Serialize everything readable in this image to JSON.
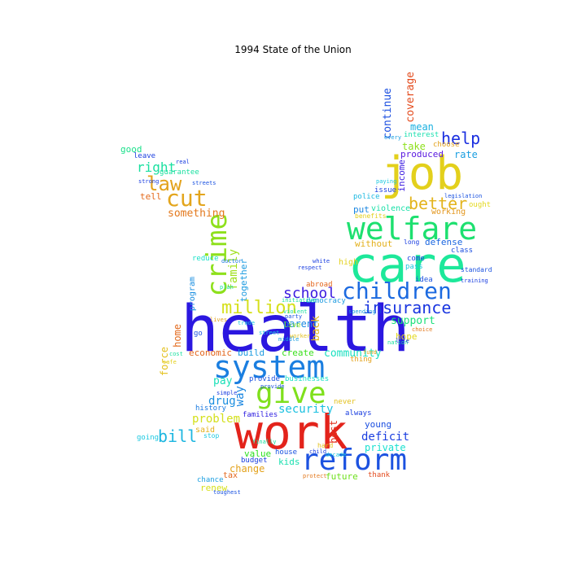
{
  "title": "1994 State of the Union",
  "words": [
    {
      "text": "health",
      "color": "#2b17e0"
    },
    {
      "text": "care",
      "color": "#1de89a"
    },
    {
      "text": "job",
      "color": "#e3d01c"
    },
    {
      "text": "work",
      "color": "#e3231b"
    },
    {
      "text": "welfare",
      "color": "#1de06f"
    },
    {
      "text": "system",
      "color": "#1a7ee0"
    },
    {
      "text": "give",
      "color": "#7fe01c"
    },
    {
      "text": "reform",
      "color": "#1c52e0"
    },
    {
      "text": "children",
      "color": "#1c6ae0"
    },
    {
      "text": "crime",
      "color": "#8ee01c"
    },
    {
      "text": "cut",
      "color": "#e3a51c"
    },
    {
      "text": "million",
      "color": "#d6e01c"
    },
    {
      "text": "law",
      "color": "#e3a21c"
    },
    {
      "text": "insurance",
      "color": "#1a36e0"
    },
    {
      "text": "better",
      "color": "#e3b41c"
    },
    {
      "text": "help",
      "color": "#1a2fe0"
    },
    {
      "text": "bill",
      "color": "#1cb6e0"
    },
    {
      "text": "school",
      "color": "#3a1ae0"
    },
    {
      "text": "security",
      "color": "#1ac0e0"
    },
    {
      "text": "right",
      "color": "#1ae0a0"
    },
    {
      "text": "something",
      "color": "#e3781c"
    },
    {
      "text": "community",
      "color": "#1ae0c0"
    },
    {
      "text": "continue",
      "color": "#1a4ee0"
    },
    {
      "text": "coverage",
      "color": "#e34a1c"
    },
    {
      "text": "family",
      "color": "#a0e01c"
    },
    {
      "text": "deficit",
      "color": "#1a3ee0"
    },
    {
      "text": "private",
      "color": "#1ae0d0"
    },
    {
      "text": "drug",
      "color": "#1a8ee0"
    },
    {
      "text": "pay",
      "color": "#1ae0b8"
    },
    {
      "text": "problem",
      "color": "#d4e01c"
    },
    {
      "text": "support",
      "color": "#1ae07a"
    },
    {
      "text": "way",
      "color": "#1a86e0"
    },
    {
      "text": "economic",
      "color": "#e3661c"
    },
    {
      "text": "create",
      "color": "#3ae01c"
    },
    {
      "text": "build",
      "color": "#1a9ae0"
    },
    {
      "text": "parent",
      "color": "#1a8ae0"
    },
    {
      "text": "kids",
      "color": "#1ae0b0"
    },
    {
      "text": "value",
      "color": "#2ae01c"
    },
    {
      "text": "change",
      "color": "#e3a21c"
    },
    {
      "text": "future",
      "color": "#6ee01c"
    },
    {
      "text": "defense",
      "color": "#1a66e0"
    },
    {
      "text": "mean",
      "color": "#1ab0e0"
    },
    {
      "text": "take",
      "color": "#8ee01c"
    },
    {
      "text": "produced",
      "color": "#5a1ae0"
    },
    {
      "text": "rate",
      "color": "#1a9ee0"
    },
    {
      "text": "income",
      "color": "#3a1ae0"
    },
    {
      "text": "good",
      "color": "#1ae08a"
    },
    {
      "text": "tell",
      "color": "#e36a1c"
    },
    {
      "text": "home",
      "color": "#e36a1c"
    },
    {
      "text": "force",
      "color": "#e3c01c"
    },
    {
      "text": "back",
      "color": "#e3b81c"
    },
    {
      "text": "hope",
      "color": "#e3d81c"
    },
    {
      "text": "best",
      "color": "#e3301c"
    },
    {
      "text": "together",
      "color": "#1a9ae0"
    },
    {
      "text": "program",
      "color": "#1a8ee0"
    },
    {
      "text": "without",
      "color": "#e3b01c"
    },
    {
      "text": "violence",
      "color": "#1ae0a8"
    },
    {
      "text": "working",
      "color": "#e3961c"
    },
    {
      "text": "put",
      "color": "#1a86e0"
    },
    {
      "text": "young",
      "color": "#1a4ee0"
    },
    {
      "text": "said",
      "color": "#e3b01c"
    },
    {
      "text": "renew",
      "color": "#d6e01c"
    },
    {
      "text": "tax",
      "color": "#e3661c"
    },
    {
      "text": "chance",
      "color": "#1a9ee0"
    },
    {
      "text": "budget",
      "color": "#1a3ee0"
    },
    {
      "text": "house",
      "color": "#1a52e0"
    },
    {
      "text": "families",
      "color": "#2a1ae0"
    },
    {
      "text": "provide",
      "color": "#1a52e0"
    },
    {
      "text": "businesses",
      "color": "#1ae0c8"
    },
    {
      "text": "history",
      "color": "#1a7ae0"
    },
    {
      "text": "thank",
      "color": "#e34a1c"
    },
    {
      "text": "interest",
      "color": "#1ae0b0"
    },
    {
      "text": "issue",
      "color": "#1a3ee0"
    },
    {
      "text": "police",
      "color": "#1ab8e0"
    },
    {
      "text": "class",
      "color": "#1a4ee0"
    },
    {
      "text": "high",
      "color": "#e3d01c"
    },
    {
      "text": "pass",
      "color": "#1ac8e0"
    },
    {
      "text": "come",
      "color": "#1a3ee0"
    },
    {
      "text": "idea",
      "color": "#1a52e0"
    },
    {
      "text": "abroad",
      "color": "#e3661c"
    },
    {
      "text": "democracy",
      "color": "#1a9ae0"
    },
    {
      "text": "live",
      "color": "#7ee01c"
    },
    {
      "text": "thing",
      "color": "#e3a21c"
    },
    {
      "text": "never",
      "color": "#e3c01c"
    },
    {
      "text": "always",
      "color": "#1a3ee0"
    },
    {
      "text": "guarantee",
      "color": "#1ae0a0"
    },
    {
      "text": "leave",
      "color": "#1a3ee0"
    },
    {
      "text": "reduce",
      "color": "#1ae0c8"
    },
    {
      "text": "go",
      "color": "#1a52e0"
    },
    {
      "text": "choose",
      "color": "#e3a21c"
    },
    {
      "text": "going",
      "color": "#1ac8e0"
    },
    {
      "text": "ought",
      "color": "#e3d81c"
    },
    {
      "text": "benefits",
      "color": "#e3d01c"
    },
    {
      "text": "standard",
      "color": "#1a52e0"
    },
    {
      "text": "stop",
      "color": "#1ac8e0"
    },
    {
      "text": "long",
      "color": "#1a3ee0"
    },
    {
      "text": "hard",
      "color": "#e3c01c"
    },
    {
      "text": "protect",
      "color": "#e3781c"
    },
    {
      "text": "provide",
      "color": "#1a52e0"
    },
    {
      "text": "decade",
      "color": "#1ac8e0"
    },
    {
      "text": "doctor",
      "color": "#1a7ae0"
    },
    {
      "text": "simple",
      "color": "#1a3ee0"
    },
    {
      "text": "toughest",
      "color": "#1a52e0"
    },
    {
      "text": "every",
      "color": "#1a9ee0"
    },
    {
      "text": "child",
      "color": "#1a3ee0"
    },
    {
      "text": "cost",
      "color": "#1ae0a0"
    },
    {
      "text": "finally",
      "color": "#1ae0a0"
    },
    {
      "text": "strong",
      "color": "#1a3ee0"
    },
    {
      "text": "paying",
      "color": "#1ac8e0"
    },
    {
      "text": "fund",
      "color": "#e3a21c"
    },
    {
      "text": "plan",
      "color": "#1ae0a0"
    },
    {
      "text": "training",
      "color": "#1a3ee0"
    },
    {
      "text": "legislation",
      "color": "#1a52e0"
    },
    {
      "text": "spending",
      "color": "#1a9ee0"
    },
    {
      "text": "violent",
      "color": "#1ae0a0"
    },
    {
      "text": "real",
      "color": "#1a3ee0"
    },
    {
      "text": "lives",
      "color": "#e3a21c"
    },
    {
      "text": "street",
      "color": "#1ac8e0"
    },
    {
      "text": "worker",
      "color": "#e3c01c"
    },
    {
      "text": "streets",
      "color": "#1a52e0"
    },
    {
      "text": "choice",
      "color": "#e3781c"
    },
    {
      "text": "nation",
      "color": "#1ae0a0"
    },
    {
      "text": "middle",
      "color": "#1a9ee0"
    },
    {
      "text": "life",
      "color": "#1a3ee0"
    },
    {
      "text": "safe",
      "color": "#e3d01c"
    },
    {
      "text": "trade",
      "color": "#1ac8e0"
    },
    {
      "text": "party",
      "color": "#1a52e0"
    },
    {
      "text": "respect",
      "color": "#1a3ee0"
    },
    {
      "text": "white",
      "color": "#1a3ee0"
    },
    {
      "text": "initiative",
      "color": "#1ae0a0"
    }
  ]
}
